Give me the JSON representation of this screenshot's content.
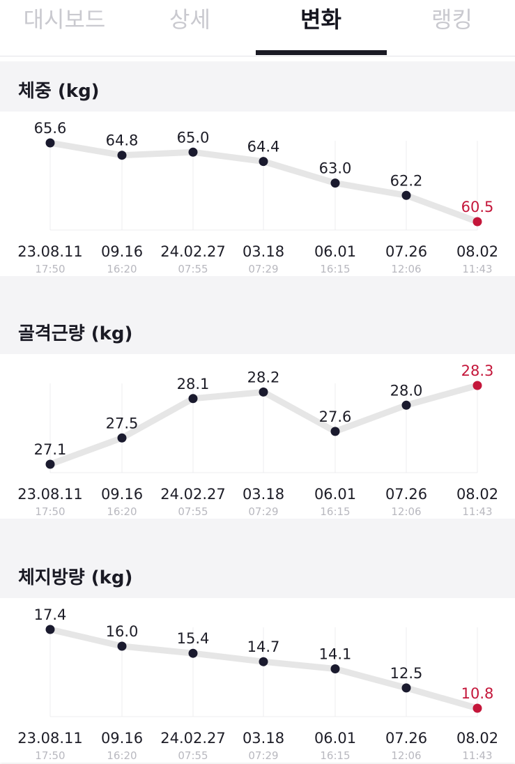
{
  "tabs": [
    "대시보드",
    "상세",
    "변화",
    "랭킹"
  ],
  "active_tab": 2,
  "colors": {
    "accent": "#c4163a",
    "line": "#e6e6e6",
    "point": "#1a1a2e",
    "grid": "#ececef"
  },
  "chart_data": [
    {
      "type": "line",
      "title": "체중 (kg)",
      "categories": [
        "23.08.11",
        "09.16",
        "24.02.27",
        "03.18",
        "06.01",
        "07.26",
        "08.02"
      ],
      "times": [
        "17:50",
        "16:20",
        "07:55",
        "07:29",
        "16:15",
        "12:06",
        "11:43"
      ],
      "series": [
        {
          "values": [
            65.6,
            64.8,
            65.0,
            64.4,
            63.0,
            62.2,
            60.5
          ]
        }
      ]
    },
    {
      "type": "line",
      "title": "골격근량 (kg)",
      "categories": [
        "23.08.11",
        "09.16",
        "24.02.27",
        "03.18",
        "06.01",
        "07.26",
        "08.02"
      ],
      "times": [
        "17:50",
        "16:20",
        "07:55",
        "07:29",
        "16:15",
        "12:06",
        "11:43"
      ],
      "series": [
        {
          "values": [
            27.1,
            27.5,
            28.1,
            28.2,
            27.6,
            28.0,
            28.3
          ]
        }
      ]
    },
    {
      "type": "line",
      "title": "체지방량 (kg)",
      "categories": [
        "23.08.11",
        "09.16",
        "24.02.27",
        "03.18",
        "06.01",
        "07.26",
        "08.02"
      ],
      "times": [
        "17:50",
        "16:20",
        "07:55",
        "07:29",
        "16:15",
        "12:06",
        "11:43"
      ],
      "series": [
        {
          "values": [
            17.4,
            16.0,
            15.4,
            14.7,
            14.1,
            12.5,
            10.8
          ]
        }
      ]
    }
  ]
}
